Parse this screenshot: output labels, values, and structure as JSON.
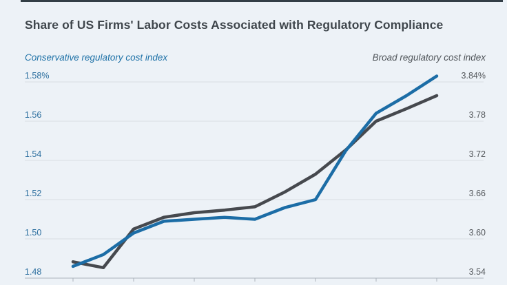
{
  "colors": {
    "background": "#edf2f7",
    "top_bar": "#333e46",
    "title": "#3f464c",
    "grid_line": "#d9dee3",
    "axis_line": "#aab3bb",
    "left_tick": "#2d6f9f",
    "right_tick": "#54585c",
    "legend_left": "#2173a8",
    "legend_right": "#50555a"
  },
  "chart_data": {
    "type": "line",
    "title": "Share of US Firms' Labor Costs Associated with Regulatory Compliance",
    "x_point_count": 13,
    "x_tick_indices": [
      0,
      2,
      4,
      6,
      8,
      10,
      12
    ],
    "x_labels_visible": false,
    "grid": "horizontal-only",
    "left_axis": {
      "label": "Conservative regulatory cost index",
      "min": 1.48,
      "max": 1.58,
      "ticks": [
        "1.58%",
        "1.56",
        "1.54",
        "1.52",
        "1.50",
        "1.48"
      ]
    },
    "right_axis": {
      "label": "Broad regulatory cost index",
      "min": 3.54,
      "max": 3.84,
      "ticks": [
        "3.84%",
        "3.78",
        "3.72",
        "3.66",
        "3.60",
        "3.54"
      ]
    },
    "series": [
      {
        "id": "conservative",
        "name": "Conservative regulatory cost index",
        "axis": "left",
        "color": "#1c6da6",
        "values": [
          1.486,
          1.492,
          1.503,
          1.509,
          1.51,
          1.511,
          1.51,
          1.516,
          1.52,
          1.545,
          1.564,
          1.573,
          1.583
        ]
      },
      {
        "id": "broad",
        "name": "Broad regulatory cost index",
        "axis": "right",
        "color": "#46494e",
        "values": [
          3.565,
          3.556,
          3.615,
          3.633,
          3.64,
          3.644,
          3.649,
          3.672,
          3.699,
          3.736,
          3.78,
          3.799,
          3.819
        ]
      }
    ]
  }
}
